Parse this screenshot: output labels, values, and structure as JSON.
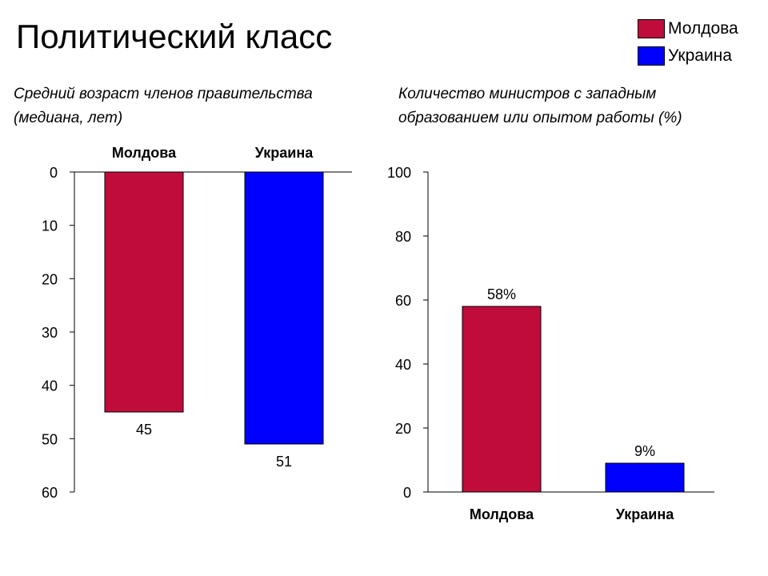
{
  "title": "Политический класс",
  "legend": [
    {
      "label": "Молдова",
      "color": "#C00C3B"
    },
    {
      "label": "Украина",
      "color": "#0000FF"
    }
  ],
  "chart_data": [
    {
      "type": "bar",
      "title": "Средний возраст членов правительства (медиана, лет)",
      "categories": [
        "Молдова",
        "Украина"
      ],
      "values": [
        45,
        51
      ],
      "value_labels": [
        "45",
        "51"
      ],
      "colors": [
        "#C00C3B",
        "#0000FF"
      ],
      "ylim": [
        0,
        60
      ],
      "y_inverted": true,
      "yticks": [
        0,
        10,
        20,
        30,
        40,
        50,
        60
      ],
      "category_axis_position": "top",
      "grid": false
    },
    {
      "type": "bar",
      "title": "Количество министров с западным образованием или опытом работы (%)",
      "categories": [
        "Молдова",
        "Украина"
      ],
      "values": [
        58,
        9
      ],
      "value_labels": [
        "58%",
        "9%"
      ],
      "colors": [
        "#C00C3B",
        "#0000FF"
      ],
      "ylim": [
        0,
        100
      ],
      "yticks": [
        0,
        20,
        40,
        60,
        80,
        100
      ],
      "category_axis_position": "bottom",
      "grid": false
    }
  ]
}
